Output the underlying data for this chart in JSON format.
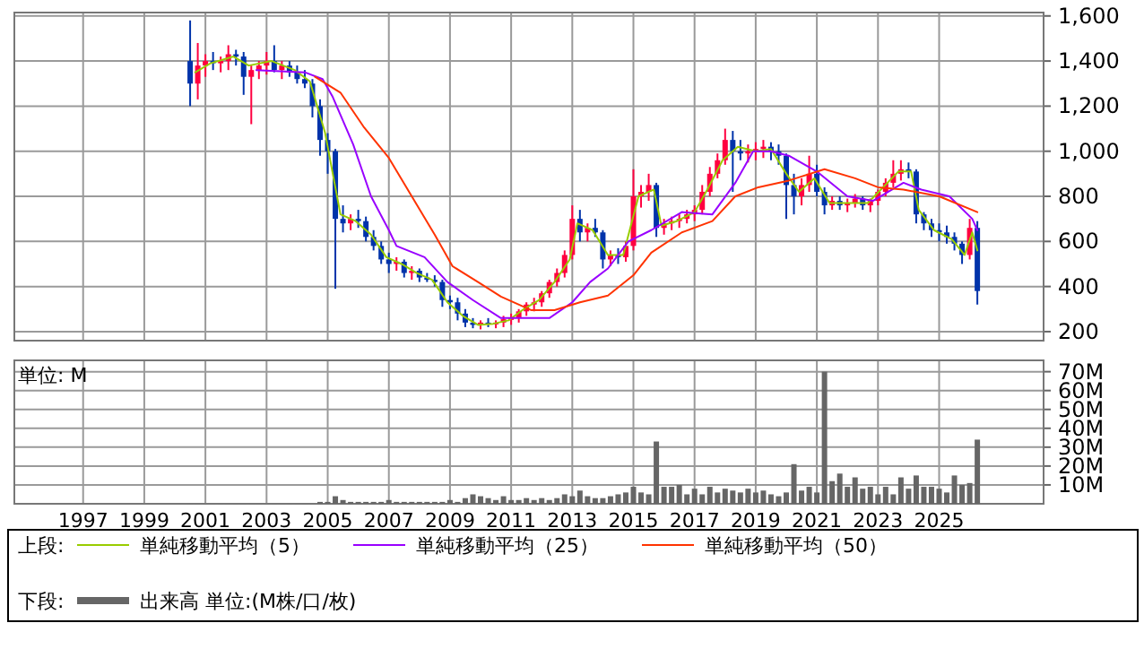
{
  "chart_data": [
    {
      "type": "candlestick",
      "legend": "bottom",
      "legend_title": "上段:",
      "grid": true,
      "tick_labels": "y",
      "xlim": [
        "1994-10",
        "2028-06"
      ],
      "xticks": [
        "1997",
        "1999",
        "2001",
        "2003",
        "2005",
        "2007",
        "2009",
        "2011",
        "2013",
        "2015",
        "2017",
        "2019",
        "2021",
        "2023",
        "2025"
      ],
      "ylim": [
        160,
        1615
      ],
      "yticks": [
        200,
        400,
        600,
        800,
        {
          "value": 1000,
          "label": "1,000"
        },
        {
          "value": 1200,
          "label": "1,200"
        },
        {
          "value": 1400,
          "label": "1,400"
        },
        {
          "value": 1600,
          "label": "1,600"
        }
      ],
      "x": [
        "2000-07",
        "2000-10",
        "2001-01",
        "2001-04",
        "2001-07",
        "2001-10",
        "2002-01",
        "2002-04",
        "2002-07",
        "2002-10",
        "2003-01",
        "2003-04",
        "2003-07",
        "2003-10",
        "2004-01",
        "2004-04",
        "2004-07",
        "2004-10",
        "2005-01",
        "2005-04",
        "2005-07",
        "2005-10",
        "2006-01",
        "2006-04",
        "2006-07",
        "2006-10",
        "2007-01",
        "2007-04",
        "2007-07",
        "2007-10",
        "2008-01",
        "2008-04",
        "2008-07",
        "2008-10",
        "2009-01",
        "2009-04",
        "2009-07",
        "2009-10",
        "2010-01",
        "2010-04",
        "2010-07",
        "2010-10",
        "2011-01",
        "2011-04",
        "2011-07",
        "2011-10",
        "2012-01",
        "2012-04",
        "2012-07",
        "2012-10",
        "2013-01",
        "2013-04",
        "2013-07",
        "2013-10",
        "2014-01",
        "2014-04",
        "2014-07",
        "2014-10",
        "2015-01",
        "2015-04",
        "2015-07",
        "2015-10",
        "2016-01",
        "2016-04",
        "2016-07",
        "2016-10",
        "2017-01",
        "2017-04",
        "2017-07",
        "2017-10",
        "2018-01",
        "2018-04",
        "2018-07",
        "2018-10",
        "2019-01",
        "2019-04",
        "2019-07",
        "2019-10",
        "2020-01",
        "2020-04",
        "2020-07",
        "2020-10",
        "2021-01",
        "2021-04",
        "2021-07",
        "2021-10",
        "2022-01",
        "2022-04",
        "2022-07",
        "2022-10",
        "2023-01",
        "2023-04",
        "2023-07",
        "2023-10",
        "2024-01",
        "2024-04",
        "2024-07",
        "2024-10",
        "2025-01",
        "2025-04",
        "2025-07",
        "2025-10",
        "2026-01",
        "2026-04"
      ],
      "ohlc": [
        [
          1400,
          1580,
          1200,
          1300
        ],
        [
          1300,
          1480,
          1230,
          1380
        ],
        [
          1380,
          1430,
          1330,
          1400
        ],
        [
          1400,
          1440,
          1360,
          1390
        ],
        [
          1390,
          1420,
          1350,
          1400
        ],
        [
          1400,
          1470,
          1360,
          1430
        ],
        [
          1430,
          1450,
          1380,
          1420
        ],
        [
          1420,
          1440,
          1250,
          1330
        ],
        [
          1330,
          1380,
          1120,
          1360
        ],
        [
          1360,
          1400,
          1320,
          1380
        ],
        [
          1380,
          1440,
          1340,
          1400
        ],
        [
          1400,
          1470,
          1350,
          1360
        ],
        [
          1360,
          1400,
          1320,
          1380
        ],
        [
          1380,
          1400,
          1330,
          1350
        ],
        [
          1350,
          1380,
          1300,
          1320
        ],
        [
          1320,
          1360,
          1280,
          1300
        ],
        [
          1300,
          1320,
          1150,
          1200
        ],
        [
          1200,
          1230,
          980,
          1050
        ],
        [
          1050,
          1080,
          900,
          1000
        ],
        [
          1000,
          1010,
          390,
          700
        ],
        [
          700,
          760,
          640,
          680
        ],
        [
          680,
          720,
          650,
          700
        ],
        [
          700,
          740,
          660,
          690
        ],
        [
          690,
          710,
          600,
          620
        ],
        [
          620,
          650,
          560,
          580
        ],
        [
          580,
          600,
          500,
          520
        ],
        [
          520,
          550,
          460,
          500
        ],
        [
          500,
          530,
          470,
          510
        ],
        [
          510,
          520,
          440,
          460
        ],
        [
          460,
          490,
          430,
          470
        ],
        [
          470,
          480,
          420,
          440
        ],
        [
          440,
          460,
          420,
          430
        ],
        [
          430,
          450,
          400,
          420
        ],
        [
          420,
          430,
          310,
          340
        ],
        [
          340,
          360,
          300,
          330
        ],
        [
          330,
          350,
          250,
          280
        ],
        [
          280,
          300,
          220,
          240
        ],
        [
          240,
          260,
          215,
          230
        ],
        [
          230,
          250,
          210,
          240
        ],
        [
          240,
          260,
          220,
          235
        ],
        [
          235,
          250,
          215,
          240
        ],
        [
          240,
          270,
          220,
          255
        ],
        [
          255,
          280,
          230,
          260
        ],
        [
          260,
          300,
          240,
          290
        ],
        [
          290,
          330,
          270,
          320
        ],
        [
          320,
          350,
          290,
          330
        ],
        [
          330,
          380,
          310,
          370
        ],
        [
          370,
          430,
          350,
          420
        ],
        [
          420,
          480,
          400,
          460
        ],
        [
          460,
          560,
          440,
          540
        ],
        [
          540,
          760,
          520,
          700
        ],
        [
          700,
          740,
          600,
          640
        ],
        [
          640,
          680,
          600,
          660
        ],
        [
          660,
          700,
          620,
          640
        ],
        [
          640,
          650,
          480,
          520
        ],
        [
          520,
          560,
          490,
          540
        ],
        [
          540,
          570,
          500,
          530
        ],
        [
          530,
          600,
          510,
          580
        ],
        [
          580,
          920,
          560,
          800
        ],
        [
          800,
          850,
          750,
          820
        ],
        [
          820,
          900,
          780,
          850
        ],
        [
          850,
          860,
          620,
          660
        ],
        [
          660,
          700,
          630,
          680
        ],
        [
          680,
          710,
          650,
          690
        ],
        [
          690,
          720,
          660,
          700
        ],
        [
          700,
          740,
          680,
          720
        ],
        [
          720,
          760,
          690,
          740
        ],
        [
          740,
          850,
          720,
          820
        ],
        [
          820,
          930,
          800,
          900
        ],
        [
          900,
          990,
          880,
          960
        ],
        [
          960,
          1100,
          940,
          1050
        ],
        [
          1050,
          1090,
          820,
          1000
        ],
        [
          1000,
          1050,
          960,
          990
        ],
        [
          990,
          1030,
          950,
          1000
        ],
        [
          1000,
          1040,
          960,
          1010
        ],
        [
          1010,
          1050,
          970,
          1020
        ],
        [
          1020,
          1040,
          960,
          1000
        ],
        [
          1000,
          1030,
          940,
          980
        ],
        [
          980,
          990,
          700,
          850
        ],
        [
          850,
          900,
          720,
          800
        ],
        [
          800,
          880,
          760,
          850
        ],
        [
          850,
          980,
          820,
          900
        ],
        [
          900,
          940,
          800,
          820
        ],
        [
          820,
          840,
          720,
          760
        ],
        [
          760,
          800,
          740,
          780
        ],
        [
          780,
          800,
          740,
          760
        ],
        [
          760,
          790,
          730,
          770
        ],
        [
          770,
          810,
          750,
          790
        ],
        [
          790,
          800,
          740,
          760
        ],
        [
          760,
          790,
          730,
          780
        ],
        [
          780,
          830,
          760,
          820
        ],
        [
          820,
          880,
          800,
          860
        ],
        [
          860,
          960,
          840,
          900
        ],
        [
          900,
          960,
          870,
          920
        ],
        [
          920,
          950,
          880,
          910
        ],
        [
          910,
          920,
          680,
          720
        ],
        [
          720,
          730,
          650,
          680
        ],
        [
          680,
          700,
          620,
          650
        ],
        [
          650,
          680,
          600,
          640
        ],
        [
          640,
          670,
          590,
          620
        ],
        [
          620,
          640,
          560,
          590
        ],
        [
          590,
          600,
          500,
          540
        ],
        [
          540,
          700,
          520,
          660
        ],
        [
          660,
          690,
          320,
          380
        ]
      ],
      "colors": [
        "#0033aa",
        "#ff0040",
        "#ff0040",
        "#0033aa",
        "#ff0040",
        "#ff0040",
        "#0033aa",
        "#0033aa",
        "#ff0040",
        "#ff0040",
        "#ff0040",
        "#0033aa",
        "#ff0040",
        "#0033aa",
        "#0033aa",
        "#0033aa",
        "#0033aa",
        "#0033aa",
        "#0033aa",
        "#0033aa",
        "#0033aa",
        "#ff0040",
        "#0033aa",
        "#0033aa",
        "#0033aa",
        "#0033aa",
        "#0033aa",
        "#ff0040",
        "#0033aa",
        "#ff0040",
        "#0033aa",
        "#0033aa",
        "#0033aa",
        "#0033aa",
        "#0033aa",
        "#0033aa",
        "#0033aa",
        "#0033aa",
        "#ff0040",
        "#0033aa",
        "#ff0040",
        "#ff0040",
        "#ff0040",
        "#ff0040",
        "#ff0040",
        "#ff0040",
        "#ff0040",
        "#ff0040",
        "#ff0040",
        "#ff0040",
        "#ff0040",
        "#0033aa",
        "#ff0040",
        "#0033aa",
        "#0033aa",
        "#ff0040",
        "#0033aa",
        "#ff0040",
        "#ff0040",
        "#ff0040",
        "#ff0040",
        "#0033aa",
        "#ff0040",
        "#ff0040",
        "#ff0040",
        "#ff0040",
        "#ff0040",
        "#ff0040",
        "#ff0040",
        "#ff0040",
        "#ff0040",
        "#0033aa",
        "#0033aa",
        "#ff0040",
        "#ff0040",
        "#ff0040",
        "#0033aa",
        "#0033aa",
        "#0033aa",
        "#0033aa",
        "#ff0040",
        "#ff0040",
        "#0033aa",
        "#0033aa",
        "#ff0040",
        "#0033aa",
        "#ff0040",
        "#ff0040",
        "#0033aa",
        "#ff0040",
        "#ff0040",
        "#ff0040",
        "#ff0040",
        "#ff0040",
        "#0033aa",
        "#0033aa",
        "#0033aa",
        "#0033aa",
        "#0033aa",
        "#0033aa",
        "#0033aa",
        "#0033aa",
        "#ff0040",
        "#0033aa"
      ],
      "series": [
        {
          "type": "line",
          "name": "単純移動平均（5）",
          "color": "#99cc00",
          "x": [
            "2000-09",
            "2001-03",
            "2001-12",
            "2002-06",
            "2003-03",
            "2003-12",
            "2004-06",
            "2004-12",
            "2005-06",
            "2005-12",
            "2006-06",
            "2006-12",
            "2007-06",
            "2007-12",
            "2008-06",
            "2008-12",
            "2009-06",
            "2009-12",
            "2010-06",
            "2010-12",
            "2011-06",
            "2011-12",
            "2012-06",
            "2012-12",
            "2013-03",
            "2013-09",
            "2014-03",
            "2014-09",
            "2015-03",
            "2015-09",
            "2015-12",
            "2016-06",
            "2017-01",
            "2017-06",
            "2017-12",
            "2018-06",
            "2019-01",
            "2019-07",
            "2020-01",
            "2020-06",
            "2020-12",
            "2021-06",
            "2022-01",
            "2022-09",
            "2023-03",
            "2023-09",
            "2024-02",
            "2024-05",
            "2024-11",
            "2025-06",
            "2025-11",
            "2026-02",
            "2026-04"
          ],
          "values": [
            1350,
            1390,
            1420,
            1380,
            1400,
            1360,
            1310,
            1080,
            720,
            690,
            630,
            530,
            500,
            460,
            430,
            330,
            270,
            230,
            235,
            250,
            300,
            340,
            420,
            520,
            680,
            650,
            540,
            540,
            800,
            830,
            670,
            690,
            730,
            830,
            960,
            1020,
            1000,
            1010,
            900,
            820,
            880,
            770,
            770,
            770,
            840,
            910,
            910,
            740,
            650,
            610,
            540,
            640,
            560
          ]
        },
        {
          "type": "line",
          "name": "単純移動平均（25）",
          "color": "#9900ff",
          "x": [
            "2002-09",
            "2004-04",
            "2004-11",
            "2005-03",
            "2005-11",
            "2006-06",
            "2007-01",
            "2007-04",
            "2008-03",
            "2008-12",
            "2009-10",
            "2010-09",
            "2011-07",
            "2012-04",
            "2013-01",
            "2013-08",
            "2014-03",
            "2014-11",
            "2015-08",
            "2016-08",
            "2017-08",
            "2018-05",
            "2018-12",
            "2019-07",
            "2020-02",
            "2021-01",
            "2022-01",
            "2022-11",
            "2023-11",
            "2024-06",
            "2025-05",
            "2026-02",
            "2026-04"
          ],
          "values": [
            1360,
            1350,
            1320,
            1240,
            1030,
            800,
            650,
            580,
            530,
            420,
            340,
            260,
            260,
            260,
            330,
            420,
            480,
            600,
            650,
            730,
            720,
            860,
            1000,
            1000,
            980,
            910,
            800,
            780,
            860,
            830,
            800,
            700,
            650
          ]
        },
        {
          "type": "line",
          "name": "単純移動平均（50）",
          "color": "#ff3300",
          "x": [
            "2004-08",
            "2005-06",
            "2006-03",
            "2007-01",
            "2007-10",
            "2008-07",
            "2009-02",
            "2009-12",
            "2010-09",
            "2011-09",
            "2012-06",
            "2013-04",
            "2014-03",
            "2015-01",
            "2015-08",
            "2016-08",
            "2017-08",
            "2018-05",
            "2019-02",
            "2020-02",
            "2021-04",
            "2022-04",
            "2023-01",
            "2023-11",
            "2025-01",
            "2026-04"
          ],
          "values": [
            1330,
            1260,
            1110,
            970,
            800,
            630,
            490,
            420,
            355,
            295,
            295,
            330,
            360,
            450,
            550,
            640,
            690,
            800,
            840,
            870,
            920,
            880,
            840,
            830,
            800,
            730
          ]
        }
      ]
    },
    {
      "type": "bar",
      "legend": "bottom",
      "legend_title": "下段:",
      "grid": true,
      "annotations": [
        "単位: M"
      ],
      "xlim": [
        "1994-10",
        "2028-06"
      ],
      "xticks": [
        "1997",
        "1999",
        "2001",
        "2003",
        "2005",
        "2007",
        "2009",
        "2011",
        "2013",
        "2015",
        "2017",
        "2019",
        "2021",
        "2023",
        "2025"
      ],
      "ylim": [
        0,
        76
      ],
      "yticks": [
        {
          "value": 10,
          "label": "10M"
        },
        {
          "value": 20,
          "label": "20M"
        },
        {
          "value": 30,
          "label": "30M"
        },
        {
          "value": 40,
          "label": "40M"
        },
        {
          "value": 50,
          "label": "50M"
        },
        {
          "value": 60,
          "label": "60M"
        },
        {
          "value": 70,
          "label": "70M"
        }
      ],
      "x": [
        "2000-07",
        "2000-10",
        "2001-01",
        "2001-04",
        "2001-07",
        "2001-10",
        "2002-01",
        "2002-04",
        "2002-07",
        "2002-10",
        "2003-01",
        "2003-04",
        "2003-07",
        "2003-10",
        "2004-01",
        "2004-04",
        "2004-07",
        "2004-10",
        "2005-01",
        "2005-04",
        "2005-07",
        "2005-10",
        "2006-01",
        "2006-04",
        "2006-07",
        "2006-10",
        "2007-01",
        "2007-04",
        "2007-07",
        "2007-10",
        "2008-01",
        "2008-04",
        "2008-07",
        "2008-10",
        "2009-01",
        "2009-04",
        "2009-07",
        "2009-10",
        "2010-01",
        "2010-04",
        "2010-07",
        "2010-10",
        "2011-01",
        "2011-04",
        "2011-07",
        "2011-10",
        "2012-01",
        "2012-04",
        "2012-07",
        "2012-10",
        "2013-01",
        "2013-04",
        "2013-07",
        "2013-10",
        "2014-01",
        "2014-04",
        "2014-07",
        "2014-10",
        "2015-01",
        "2015-04",
        "2015-07",
        "2015-10",
        "2016-01",
        "2016-04",
        "2016-07",
        "2016-10",
        "2017-01",
        "2017-04",
        "2017-07",
        "2017-10",
        "2018-01",
        "2018-04",
        "2018-07",
        "2018-10",
        "2019-01",
        "2019-04",
        "2019-07",
        "2019-10",
        "2020-01",
        "2020-04",
        "2020-07",
        "2020-10",
        "2021-01",
        "2021-04",
        "2021-07",
        "2021-10",
        "2022-01",
        "2022-04",
        "2022-07",
        "2022-10",
        "2023-01",
        "2023-04",
        "2023-07",
        "2023-10",
        "2024-01",
        "2024-04",
        "2024-07",
        "2024-10",
        "2025-01",
        "2025-04",
        "2025-07",
        "2025-10",
        "2026-01",
        "2026-04"
      ],
      "series": [
        {
          "name": "出来高 単位:(M株/口/枚)",
          "color": "#666666",
          "values": [
            0,
            0,
            0,
            0,
            0,
            0,
            0,
            0,
            0,
            0,
            0,
            0,
            0,
            0,
            0,
            0,
            0,
            1,
            1,
            4,
            2,
            1,
            1,
            1,
            1,
            1,
            2,
            1,
            1,
            1,
            1,
            1,
            1,
            1,
            2,
            1,
            3,
            5,
            4,
            3,
            2,
            4,
            2,
            2,
            3,
            2,
            3,
            2,
            3,
            5,
            4,
            7,
            4,
            3,
            3,
            4,
            5,
            6,
            9,
            6,
            5,
            33,
            9,
            9,
            10,
            5,
            8,
            5,
            9,
            6,
            8,
            7,
            6,
            8,
            6,
            7,
            5,
            4,
            6,
            21,
            7,
            9,
            6,
            70,
            12,
            16,
            9,
            14,
            8,
            9,
            5,
            9,
            5,
            14,
            8,
            15,
            9,
            9,
            8,
            6,
            15,
            10,
            11,
            34
          ]
        }
      ]
    }
  ]
}
